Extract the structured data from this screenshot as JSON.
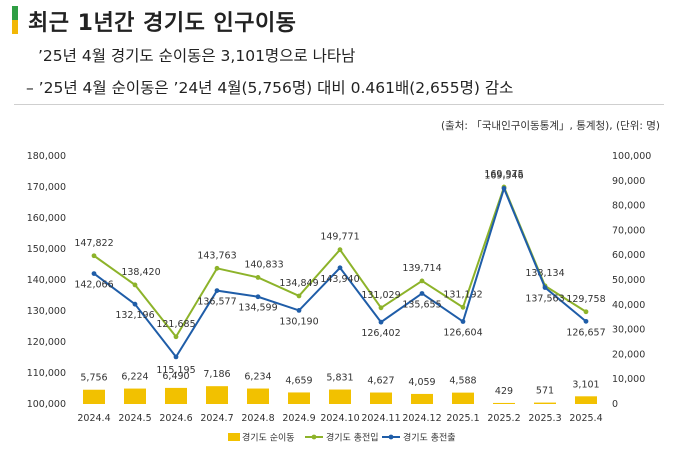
{
  "header": {
    "title": "최근 1년간 경기도 인구이동",
    "line1": "’25년 4월 경기도 순이동은 3,101명으로 나타남",
    "line2": "– ’25년 4월 순이동은 ’24년 4월(5,756명) 대비 0.461배(2,655명) 감소",
    "source": "(출처: 「국내인구이동통계」, 통계청), (단위: 명)",
    "accent_colors": [
      "#2f9e44",
      "#f2b705"
    ]
  },
  "chart_data": {
    "type": "bar+line",
    "categories": [
      "2024.4",
      "2024.5",
      "2024.6",
      "2024.7",
      "2024.8",
      "2024.9",
      "2024.10",
      "2024.11",
      "2024.12",
      "2025.1",
      "2025.2",
      "2025.3",
      "2025.4"
    ],
    "left_axis": {
      "min": 100000,
      "max": 180000,
      "ticks": [
        "180,000",
        "170,000",
        "160,000",
        "150,000",
        "140,000",
        "130,000",
        "120,000",
        "110,000",
        "100,000"
      ]
    },
    "right_axis": {
      "min": 0,
      "max": 100000,
      "ticks": [
        "100,000",
        "90,000",
        "80,000",
        "70,000",
        "60,000",
        "50,000",
        "40,000",
        "30,000",
        "20,000",
        "10,000",
        "0"
      ]
    },
    "series": [
      {
        "name": "경기도 순이동",
        "type": "bar",
        "axis": "right",
        "color": "#f2c100",
        "values": [
          5756,
          6224,
          6490,
          7186,
          6234,
          4659,
          5831,
          4627,
          4059,
          4588,
          429,
          571,
          3101
        ],
        "labels": [
          "5,756",
          "6,224",
          "6,490",
          "7,186",
          "6,234",
          "4,659",
          "5,831",
          "4,627",
          "4,059",
          "4,588",
          "429",
          "571",
          "3,101"
        ]
      },
      {
        "name": "경기도 총전입",
        "type": "line",
        "axis": "left",
        "color": "#8db32a",
        "values": [
          147822,
          138420,
          121685,
          143763,
          140833,
          134849,
          149771,
          131029,
          139714,
          131192,
          169975,
          138134,
          129758
        ],
        "labels": [
          "147,822",
          "138,420",
          "121,685",
          "143,763",
          "140,833",
          "134,849",
          "149,771",
          "131,029",
          "139,714",
          "131,192",
          "169,975",
          "138,134",
          "129,758"
        ]
      },
      {
        "name": "경기도 총전출",
        "type": "line",
        "axis": "left",
        "color": "#1f5da8",
        "values": [
          142066,
          132196,
          115195,
          136577,
          134599,
          130190,
          143940,
          126402,
          135655,
          126604,
          169546,
          137563,
          126657
        ],
        "labels": [
          "142,066",
          "132,196",
          "115,195",
          "136,577",
          "134,599",
          "130,190",
          "143,940",
          "126,402",
          "135,655",
          "126,604",
          "169,546",
          "137,563",
          "126,657"
        ]
      }
    ],
    "legend_position": "bottom",
    "grid": false
  }
}
